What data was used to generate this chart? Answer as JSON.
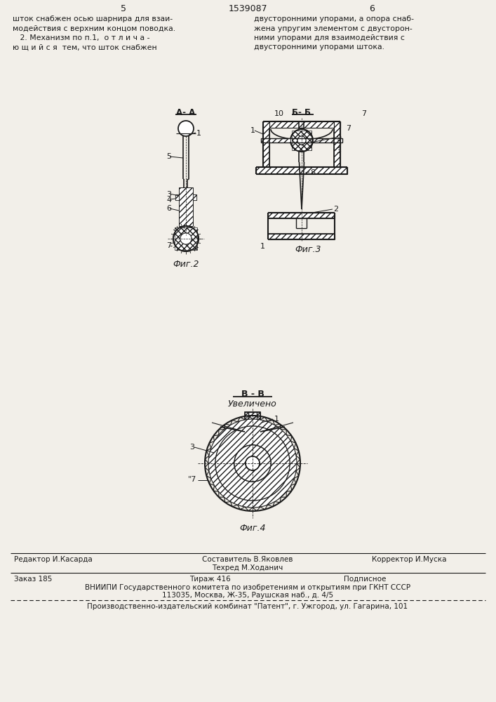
{
  "page_width": 7.07,
  "page_height": 10.0,
  "bg_color": "#f2efe9",
  "text_color": "#1a1a1a",
  "line_color": "#1a1a1a",
  "header_left_num": "5",
  "header_center": "1539087",
  "header_right_num": "6",
  "text_col1_lines": [
    "шток снабжен осью шарнира для взаи-",
    "модействия с верхним концом поводка.",
    "   2. Механизм по п.1,  о т л и ч а -",
    "ю щ и й с я  тем, что шток снабжен"
  ],
  "text_col2_lines": [
    "двусторонними упорами, а опора снаб-",
    "жена упругим элементом с двусторон-",
    "ними упорами для взаимодействия с",
    "двусторонними упорами штока."
  ],
  "fig2_label": "Фиг.2",
  "fig3_label": "Фиг.3",
  "fig4_label": "Фиг.4",
  "section_aa": "А- А",
  "section_bb": "Б- Б",
  "section_vv": "В - В",
  "section_vv_sub": "Увеличено",
  "footer_editor": "Редактор И.Касарда",
  "footer_compiler": "Составитель В.Яковлев",
  "footer_tech": "Техред М.Ходанич",
  "footer_corrector": "Корректор И.Муска",
  "footer_order": "Заказ 185",
  "footer_print": "Тираж 416",
  "footer_subscription": "Подписное",
  "footer_vniip1": "ВНИИПИ Государственного комитета по изобретениям и открытиям при ГКНТ СССР",
  "footer_vniip2": "113035, Москва, Ж-35, Раушская наб., д. 4/5",
  "footer_prod": "Производственно-издательский комбинат \"Патент\", г. Ужгород, ул. Гагарина, 101"
}
